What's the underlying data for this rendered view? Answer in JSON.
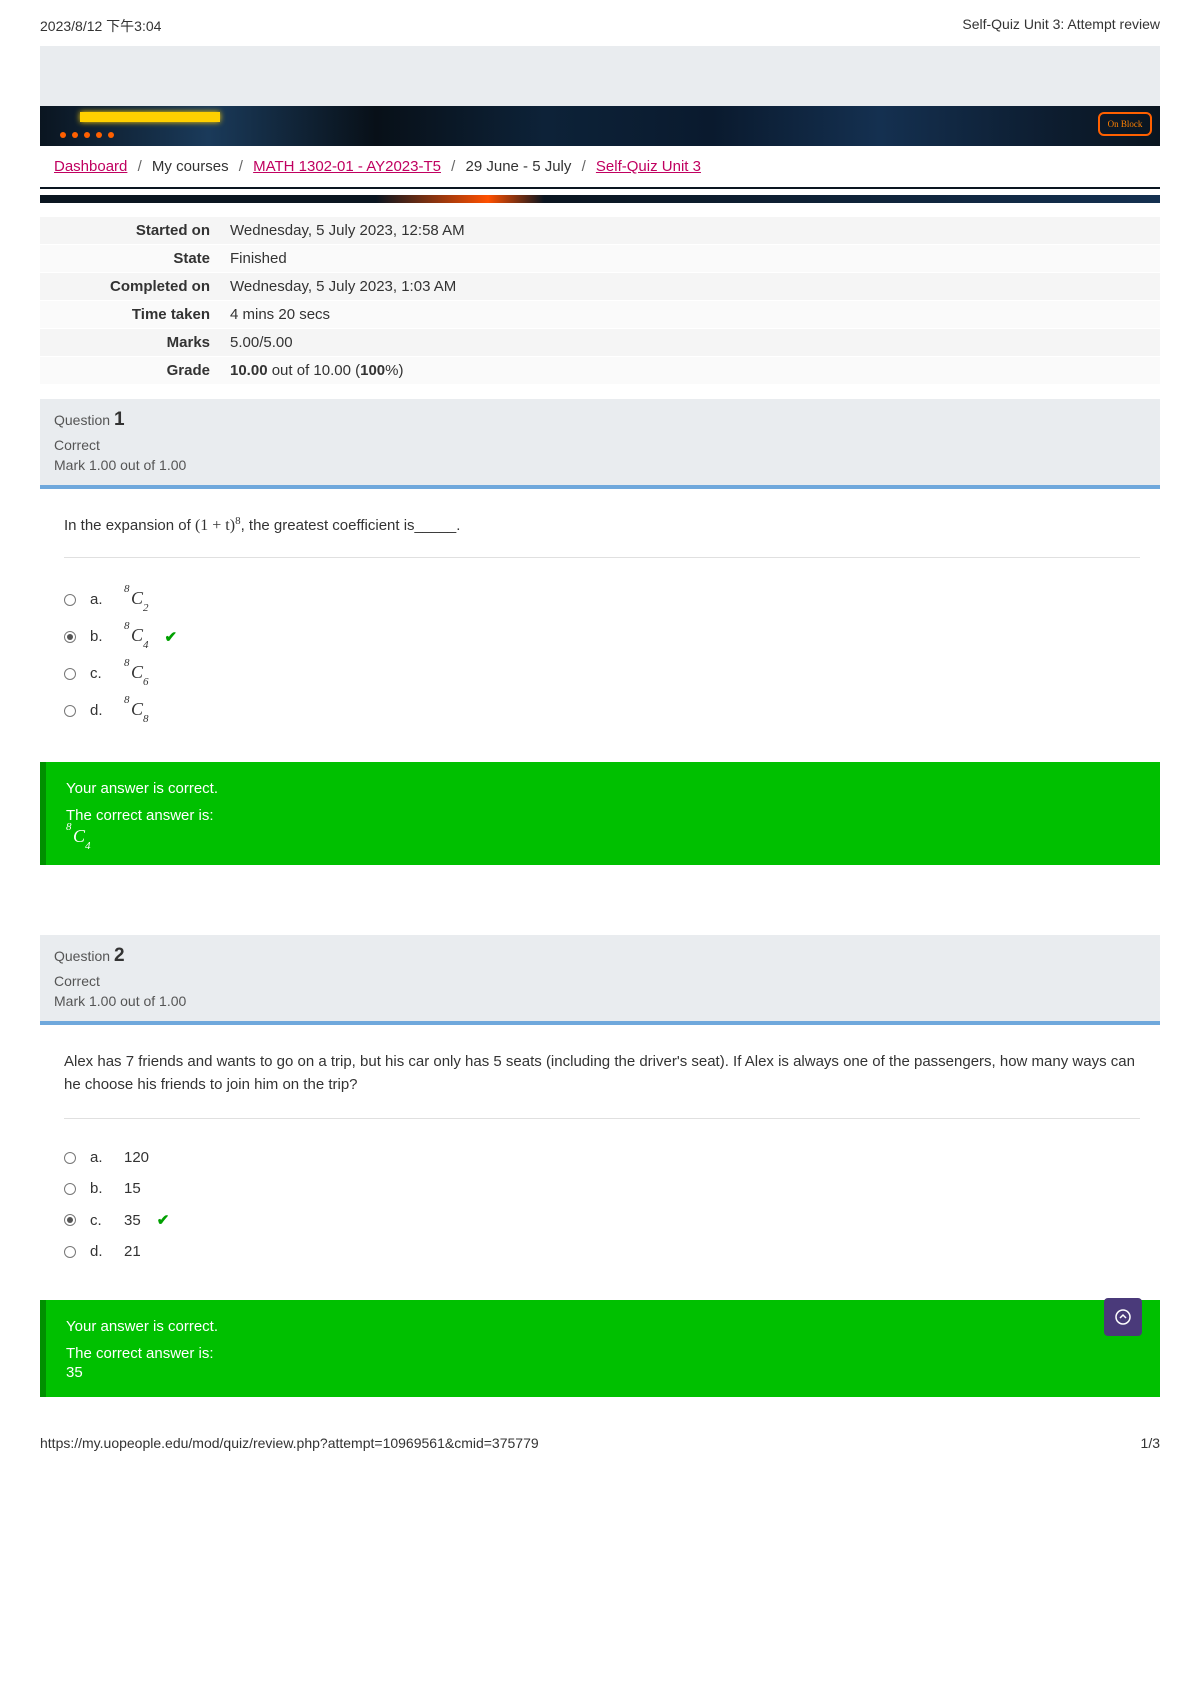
{
  "print_header": {
    "left": "2023/8/12 下午3:04",
    "right": "Self-Quiz Unit 3: Attempt review"
  },
  "banner": {
    "badge": "On Block"
  },
  "breadcrumb": {
    "items": [
      {
        "text": "Dashboard",
        "link": true
      },
      {
        "text": "My courses",
        "link": false
      },
      {
        "text": "MATH 1302-01 - AY2023-T5",
        "link": true
      },
      {
        "text": "29 June - 5 July",
        "link": false
      },
      {
        "text": "Self-Quiz Unit 3",
        "link": true
      }
    ],
    "separator": "/"
  },
  "summary": {
    "rows": [
      {
        "label": "Started on",
        "value": "Wednesday, 5 July 2023, 12:58 AM"
      },
      {
        "label": "State",
        "value": "Finished"
      },
      {
        "label": "Completed on",
        "value": "Wednesday, 5 July 2023, 1:03 AM"
      },
      {
        "label": "Time taken",
        "value": "4 mins 20 secs"
      },
      {
        "label": "Marks",
        "value": "5.00/5.00"
      }
    ],
    "grade_label": "Grade",
    "grade_value_pre": "10.00",
    "grade_value_mid": " out of 10.00 (",
    "grade_value_pct": "100",
    "grade_value_post": "%)"
  },
  "q1": {
    "qword": "Question ",
    "num": "1",
    "status": "Correct",
    "mark": "Mark 1.00 out of 1.00",
    "text_pre": "In the expansion of ",
    "expr_base": "(1 + t)",
    "expr_pow": "8",
    "text_post": ", the greatest coefficient is_____.",
    "options": [
      {
        "letter": "a.",
        "sup": "8",
        "sub": "2",
        "selected": false,
        "correct": false
      },
      {
        "letter": "b.",
        "sup": "8",
        "sub": "4",
        "selected": true,
        "correct": true
      },
      {
        "letter": "c.",
        "sup": "8",
        "sub": "6",
        "selected": false,
        "correct": false
      },
      {
        "letter": "d.",
        "sup": "8",
        "sub": "8",
        "selected": false,
        "correct": false
      }
    ],
    "fb1": "Your answer is correct.",
    "fb2": "The correct answer is:",
    "ans_sup": "8",
    "ans_sub": "4"
  },
  "q2": {
    "qword": "Question ",
    "num": "2",
    "status": "Correct",
    "mark": "Mark 1.00 out of 1.00",
    "text": "Alex has 7 friends and wants to go on a trip, but his car only has 5 seats (including the driver's seat). If Alex is always one of the passengers, how many ways can he choose his friends to join him on the trip?",
    "options": [
      {
        "letter": "a.",
        "value": "120",
        "selected": false,
        "correct": false
      },
      {
        "letter": "b.",
        "value": "15",
        "selected": false,
        "correct": false
      },
      {
        "letter": "c.",
        "value": "35",
        "selected": true,
        "correct": true
      },
      {
        "letter": "d.",
        "value": "21",
        "selected": false,
        "correct": false
      }
    ],
    "fb1": "Your answer is correct.",
    "fb2": "The correct answer is:",
    "ans": "35"
  },
  "footer": {
    "url": "https://my.uopeople.edu/mod/quiz/review.php?attempt=10969561&cmid=375779",
    "page": "1/3"
  },
  "colors": {
    "link": "#c00060",
    "feedback_bg": "#00c000",
    "feedback_border": "#009000",
    "blue_bar": "#6fa8dc",
    "info_bg": "#e9ecef",
    "scroll_top": "#4a3a7a"
  }
}
